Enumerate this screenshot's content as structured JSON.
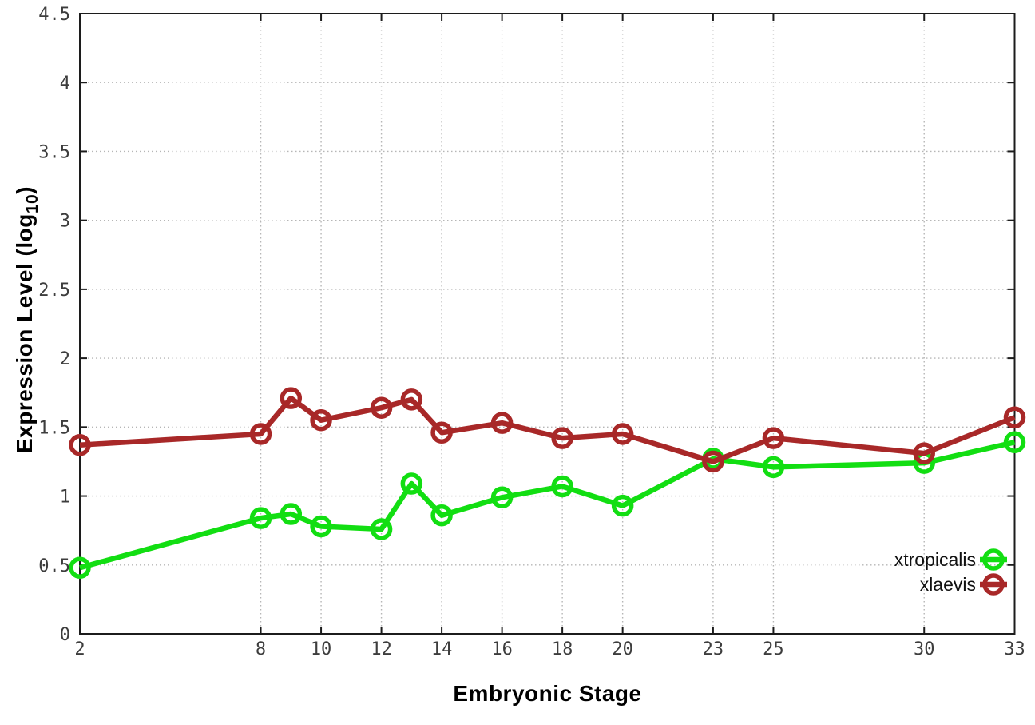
{
  "page": {
    "background": "#ffffff"
  },
  "chart_data": {
    "type": "line",
    "title": "",
    "xlabel": "Embryonic Stage",
    "ylabel": "Expression Level (log10)",
    "ylabel_pre": "Expression Level (log",
    "ylabel_sub": "10",
    "ylabel_post": ")",
    "x": [
      2,
      8,
      9,
      10,
      12,
      13,
      14,
      16,
      18,
      20,
      23,
      25,
      30,
      33
    ],
    "xticks": [
      2,
      8,
      10,
      12,
      14,
      16,
      18,
      20,
      23,
      25,
      30,
      33
    ],
    "xtick_labels": [
      "2",
      "8",
      "10",
      "12",
      "14",
      "16",
      "18",
      "20",
      "23",
      "25",
      "30",
      "33"
    ],
    "yticks": [
      0,
      0.5,
      1,
      1.5,
      2,
      2.5,
      3,
      3.5,
      4,
      4.5
    ],
    "ytick_labels": [
      "0",
      "0.5",
      "1",
      "1.5",
      "2",
      "2.5",
      "3",
      "3.5",
      "4",
      "4.5"
    ],
    "xlim": [
      2,
      33
    ],
    "ylim": [
      0,
      4.5
    ],
    "grid": true,
    "legend_position": "inside-right-bottom",
    "series": [
      {
        "name": "xtropicalis",
        "color": "#12de12",
        "values": [
          0.48,
          0.84,
          0.87,
          0.78,
          0.76,
          1.09,
          0.86,
          0.99,
          1.07,
          0.93,
          1.27,
          1.21,
          1.24,
          1.39
        ]
      },
      {
        "name": "xlaevis",
        "color": "#a82828",
        "values": [
          1.37,
          1.45,
          1.71,
          1.55,
          1.64,
          1.7,
          1.46,
          1.53,
          1.42,
          1.45,
          1.25,
          1.42,
          1.31,
          1.57
        ]
      }
    ]
  },
  "styles": {
    "axis_color": "#1c1c1c",
    "grid_color": "#b6b6b6",
    "tick_label_color": "#3d3d3d",
    "line_width": 6.5,
    "marker_radius": 11,
    "marker_stroke_width": 5.5
  }
}
